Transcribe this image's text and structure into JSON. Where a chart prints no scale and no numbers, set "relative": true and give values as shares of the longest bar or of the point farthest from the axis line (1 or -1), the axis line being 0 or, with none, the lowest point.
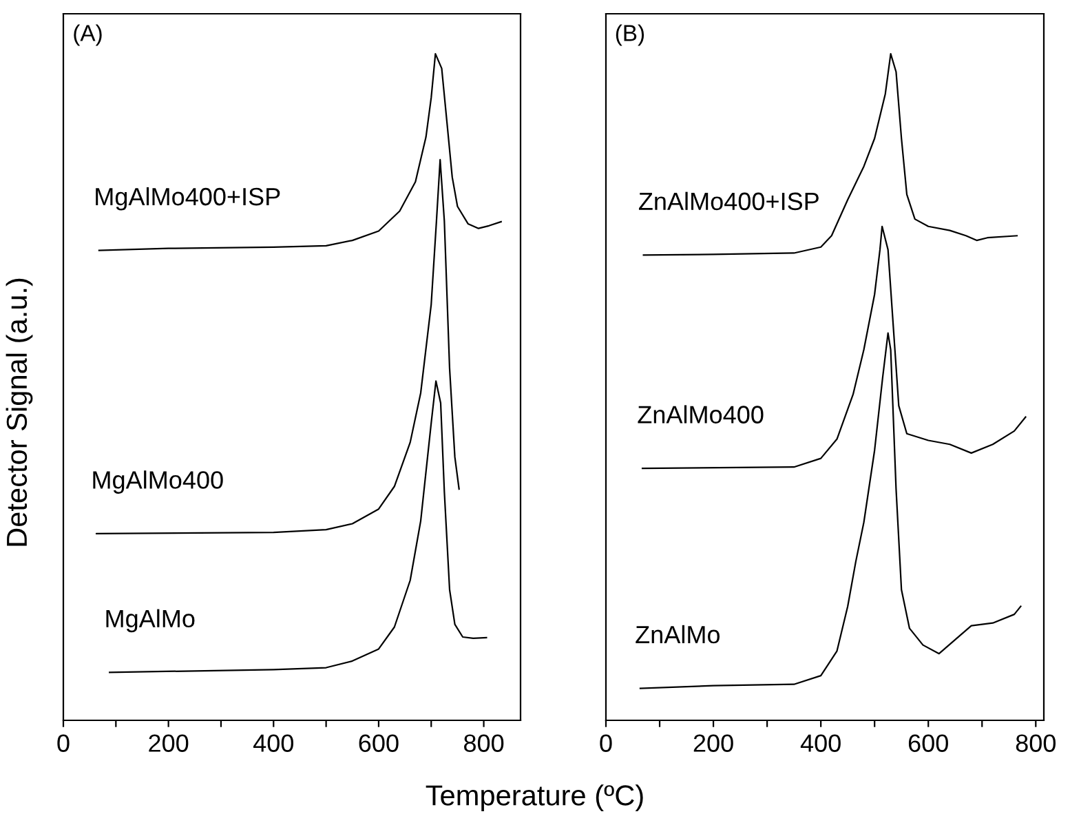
{
  "chart_data": [
    {
      "type": "line",
      "relative": true,
      "ylabel": "Detector Signal (a.u.)",
      "xlabel": "Temperature (ºC)",
      "annotations": [
        "(A)"
      ],
      "xlim": [
        0,
        870
      ],
      "xticks": [
        0,
        {
          "value": 100,
          "label": null
        },
        200,
        {
          "value": 300,
          "label": null
        },
        400,
        {
          "value": 500,
          "label": null
        },
        600,
        {
          "value": 700,
          "label": null
        },
        800
      ],
      "tick_labels": "x",
      "grid": false,
      "legend": false,
      "series": [
        {
          "name": "MgAlMo400+ISP",
          "color": "#000000",
          "x": [
            68,
            200,
            400,
            500,
            550,
            600,
            640,
            670,
            690,
            700,
            708,
            720,
            730,
            740,
            750,
            770,
            790,
            810,
            833
          ],
          "values": [
            0.705,
            0.708,
            0.71,
            0.712,
            0.72,
            0.734,
            0.764,
            0.808,
            0.875,
            0.934,
            1.0,
            0.978,
            0.897,
            0.815,
            0.771,
            0.745,
            0.738,
            0.742,
            0.748
          ]
        },
        {
          "name": "MgAlMo400",
          "color": "#000000",
          "x": [
            63,
            400,
            500,
            550,
            600,
            630,
            660,
            680,
            700,
            710,
            717,
            725,
            735,
            745,
            753
          ],
          "values": [
            0.28,
            0.282,
            0.286,
            0.295,
            0.317,
            0.351,
            0.417,
            0.491,
            0.624,
            0.749,
            0.841,
            0.749,
            0.528,
            0.395,
            0.347
          ]
        },
        {
          "name": "MgAlMo",
          "color": "#000000",
          "x": [
            88,
            400,
            500,
            550,
            600,
            630,
            660,
            680,
            700,
            709,
            718,
            725,
            735,
            745,
            760,
            780,
            805
          ],
          "values": [
            0.072,
            0.076,
            0.079,
            0.089,
            0.107,
            0.14,
            0.21,
            0.299,
            0.446,
            0.509,
            0.476,
            0.343,
            0.196,
            0.144,
            0.125,
            0.123,
            0.124
          ]
        }
      ]
    },
    {
      "type": "line",
      "relative": true,
      "annotations": [
        "(B)"
      ],
      "xlim": [
        0,
        815
      ],
      "xticks": [
        0,
        {
          "value": 100,
          "label": null
        },
        200,
        {
          "value": 300,
          "label": null
        },
        400,
        {
          "value": 500,
          "label": null
        },
        600,
        {
          "value": 700,
          "label": null
        },
        800
      ],
      "tick_labels": "x",
      "grid": false,
      "legend": false,
      "series": [
        {
          "name": "ZnAlMo400+ISP",
          "color": "#000000",
          "x": [
            70,
            200,
            350,
            400,
            420,
            450,
            480,
            500,
            520,
            530,
            540,
            550,
            560,
            575,
            600,
            640,
            670,
            690,
            710,
            765
          ],
          "values": [
            0.698,
            0.699,
            0.701,
            0.71,
            0.727,
            0.781,
            0.831,
            0.873,
            0.94,
            1.0,
            0.973,
            0.873,
            0.789,
            0.752,
            0.741,
            0.735,
            0.727,
            0.72,
            0.724,
            0.727
          ]
        },
        {
          "name": "ZnAlMo400",
          "color": "#000000",
          "x": [
            68,
            350,
            400,
            430,
            460,
            480,
            500,
            510,
            514,
            525,
            535,
            545,
            560,
            600,
            640,
            680,
            720,
            760,
            781
          ],
          "values": [
            0.378,
            0.38,
            0.393,
            0.422,
            0.489,
            0.556,
            0.639,
            0.706,
            0.741,
            0.706,
            0.589,
            0.472,
            0.43,
            0.42,
            0.414,
            0.401,
            0.414,
            0.434,
            0.455
          ]
        },
        {
          "name": "ZnAlMo",
          "color": "#000000",
          "x": [
            64,
            200,
            350,
            400,
            430,
            450,
            465,
            480,
            500,
            515,
            525,
            530,
            540,
            550,
            565,
            590,
            620,
            650,
            680,
            720,
            760,
            772
          ],
          "values": [
            0.048,
            0.052,
            0.054,
            0.067,
            0.104,
            0.171,
            0.238,
            0.297,
            0.405,
            0.514,
            0.581,
            0.556,
            0.347,
            0.196,
            0.138,
            0.113,
            0.1,
            0.121,
            0.142,
            0.146,
            0.159,
            0.171
          ]
        }
      ]
    }
  ]
}
